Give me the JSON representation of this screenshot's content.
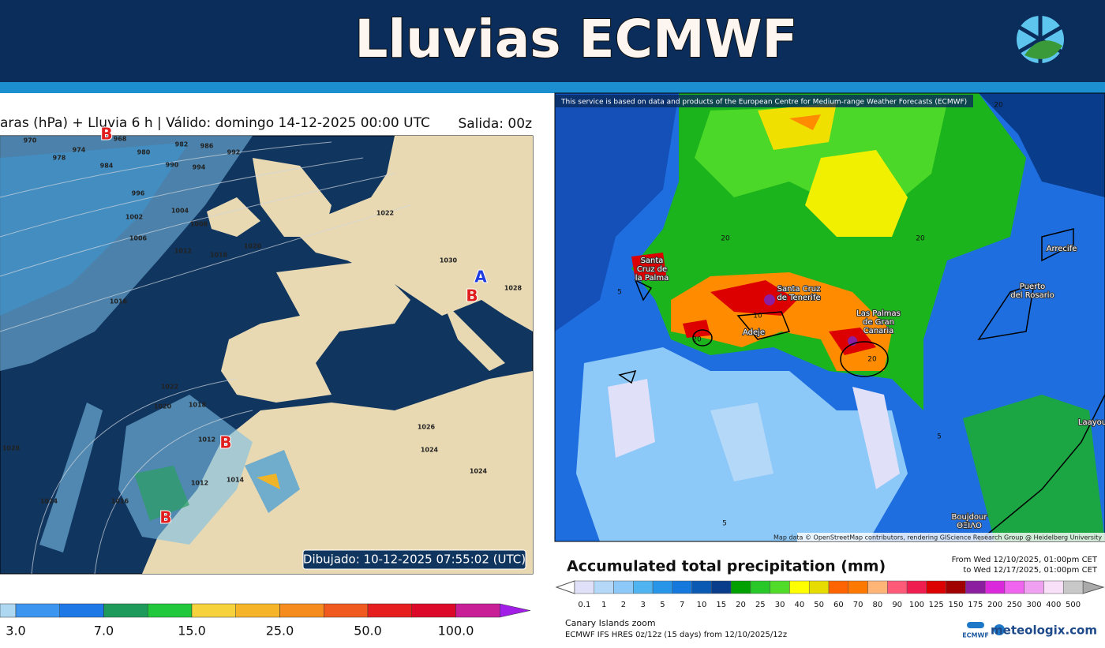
{
  "header": {
    "title": "Lluvias ECMWF"
  },
  "left_map": {
    "title": "aras (hPa) + Lluvia 6 h | Válido: domingo 14-12-2025 00:00 UTC",
    "run": "Salida: 00z",
    "isobar_labels": [
      "970",
      "974",
      "978",
      "968",
      "980",
      "982",
      "986",
      "992",
      "984",
      "990",
      "994",
      "996",
      "1002",
      "1004",
      "1006",
      "1008",
      "1012",
      "1018",
      "1020",
      "1022",
      "1016",
      "1030",
      "1028",
      "1022",
      "1020",
      "1018",
      "1012",
      "1014",
      "1012",
      "1026",
      "1024",
      "1024",
      "1028",
      "1024",
      "1016"
    ],
    "system_labels": [
      "B",
      "A",
      "B",
      "B",
      "B"
    ],
    "drawn": "Dibujado: 10-12-2025 07:55:02 (UTC)",
    "legend_labels": [
      "3.0",
      "7.0",
      "15.0",
      "25.0",
      "50.0",
      "100.0"
    ]
  },
  "right_map": {
    "notice": "This service is based on data and products of the European Centre for Medium-range Weather Forecasts (ECMWF)",
    "places": [
      [
        "Santa",
        "Cruz de",
        "la Palma"
      ],
      [
        "Santa Cruz",
        "de Tenerife"
      ],
      [
        "Adeje"
      ],
      [
        "Las Palmas",
        "de Gran",
        "Canaria"
      ],
      [
        "Arrecife"
      ],
      [
        "Puerto",
        "del Rosario"
      ],
      [
        "Laayou"
      ],
      [
        "Boujdour",
        "ΘΞΙΛΟ"
      ]
    ],
    "contour_labels": [
      "20",
      "20",
      "20",
      "5",
      "5",
      "20",
      "20",
      "10",
      "5"
    ],
    "attribution": "Map data © OpenStreetMap contributors, rendering GIScience Research Group @ Heidelberg University",
    "title": "Accumulated total precipitation (mm)",
    "period_from": "From Wed 12/10/2025, 01:00pm CET",
    "period_to": "to Wed 12/17/2025, 01:00pm CET",
    "legend_labels": [
      "0.1",
      "1",
      "2",
      "3",
      "5",
      "7",
      "10",
      "15",
      "20",
      "25",
      "30",
      "40",
      "50",
      "60",
      "70",
      "80",
      "90",
      "100",
      "125",
      "150",
      "175",
      "200",
      "250",
      "300",
      "400",
      "500"
    ],
    "zoom": "Canary Islands zoom",
    "model": "ECMWF IFS HRES 0z/12z (15 days) from 12/10/2025/12z",
    "logo_ecmwf": "ECMWF",
    "logo_site": "meteologix.com"
  }
}
